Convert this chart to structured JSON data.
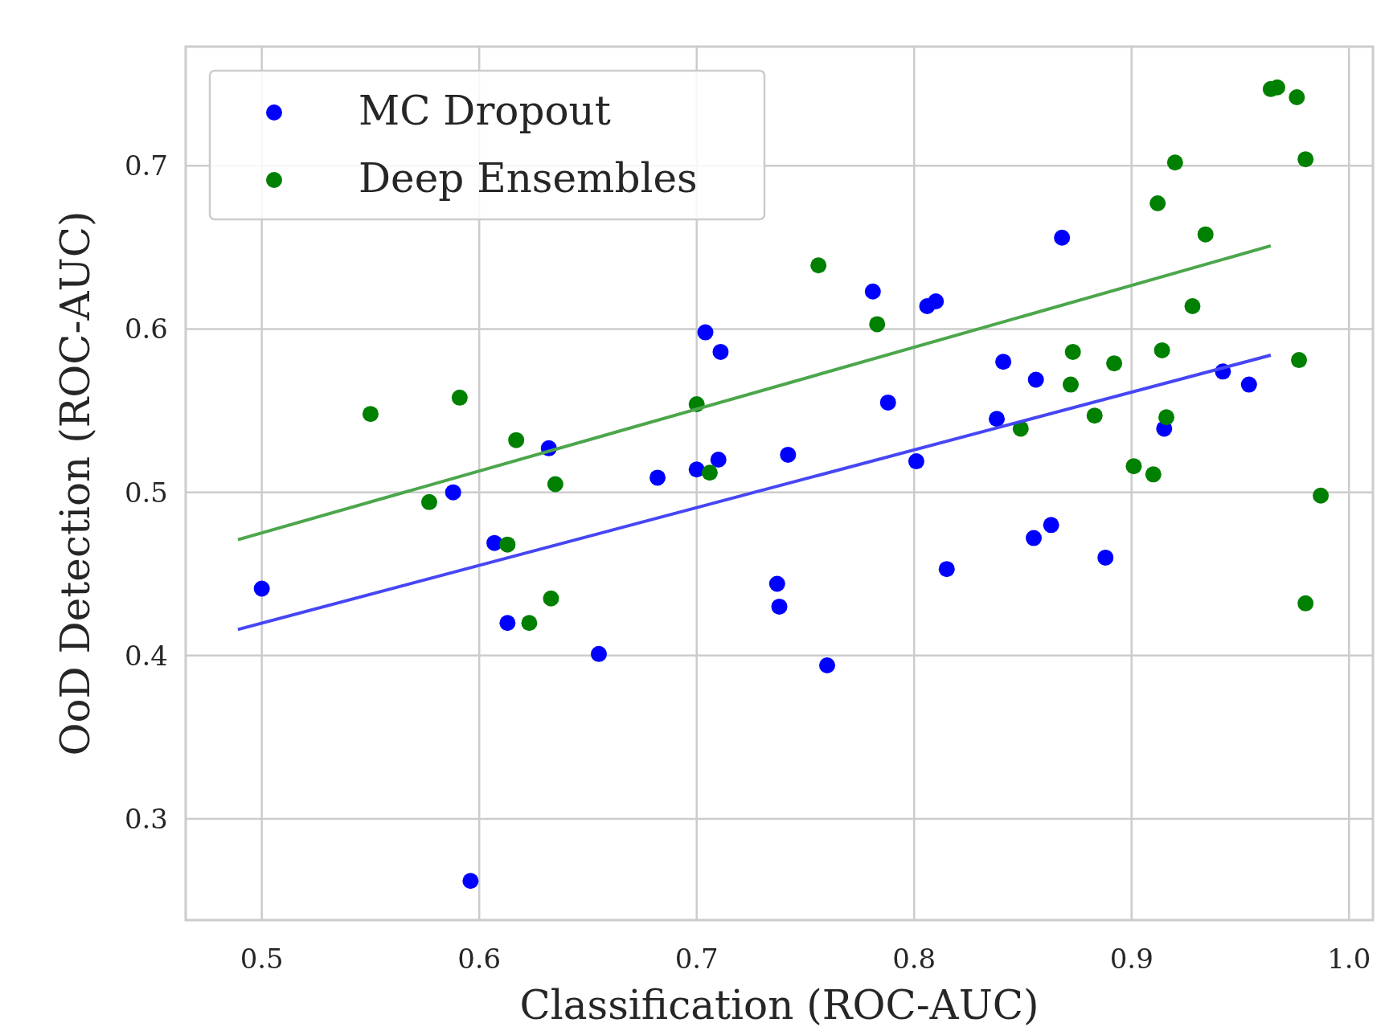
{
  "chart_data": {
    "type": "scatter",
    "xlabel": "Classification (ROC-AUC)",
    "ylabel": "OoD Detection (ROC-AUC)",
    "xlim": [
      0.465,
      1.011
    ],
    "ylim": [
      0.238,
      0.773
    ],
    "xticks": [
      0.5,
      0.6,
      0.7,
      0.8,
      0.9,
      {
        "value": 1,
        "label": "1.0"
      }
    ],
    "yticks": [
      0.3,
      0.4,
      0.5,
      0.6,
      0.7
    ],
    "grid": true,
    "legend": "top left",
    "series": [
      {
        "name": "MC Dropout",
        "marker": "circle",
        "color": "#0000ff",
        "x": [
          0.5,
          0.596,
          0.588,
          0.607,
          0.613,
          0.632,
          0.655,
          0.682,
          0.7,
          0.704,
          0.71,
          0.711,
          0.737,
          0.738,
          0.742,
          0.76,
          0.781,
          0.788,
          0.801,
          0.806,
          0.81,
          0.815,
          0.838,
          0.841,
          0.855,
          0.856,
          0.863,
          0.868,
          0.888,
          0.915,
          0.942,
          0.954
        ],
        "values": [
          0.441,
          0.262,
          0.5,
          0.469,
          0.42,
          0.527,
          0.401,
          0.509,
          0.514,
          0.598,
          0.52,
          0.586,
          0.444,
          0.43,
          0.523,
          0.394,
          0.623,
          0.555,
          0.519,
          0.614,
          0.617,
          0.453,
          0.545,
          0.58,
          0.472,
          0.569,
          0.48,
          0.656,
          0.46,
          0.539,
          0.574,
          0.566
        ]
      },
      {
        "name": "Deep Ensembles",
        "marker": "circle",
        "color": "#008000",
        "x": [
          0.55,
          0.577,
          0.591,
          0.617,
          0.613,
          0.635,
          0.633,
          0.623,
          0.7,
          0.706,
          0.756,
          0.783,
          0.849,
          0.872,
          0.873,
          0.883,
          0.892,
          0.901,
          0.91,
          0.912,
          0.914,
          0.916,
          0.92,
          0.928,
          0.934,
          0.964,
          0.967,
          0.976,
          0.977,
          0.98,
          0.98,
          0.987
        ],
        "values": [
          0.548,
          0.494,
          0.558,
          0.532,
          0.468,
          0.505,
          0.435,
          0.42,
          0.554,
          0.512,
          0.639,
          0.603,
          0.539,
          0.566,
          0.586,
          0.547,
          0.579,
          0.516,
          0.511,
          0.677,
          0.587,
          0.546,
          0.702,
          0.614,
          0.658,
          0.747,
          0.748,
          0.742,
          0.581,
          0.704,
          0.432,
          0.498
        ]
      },
      {
        "type": "line",
        "color": "#4646f5",
        "x": [
          0.489,
          0.964
        ],
        "values": [
          0.416,
          0.584
        ]
      },
      {
        "type": "line",
        "color": "#4ca64c",
        "x": [
          0.489,
          0.964
        ],
        "values": [
          0.471,
          0.651
        ]
      }
    ]
  }
}
